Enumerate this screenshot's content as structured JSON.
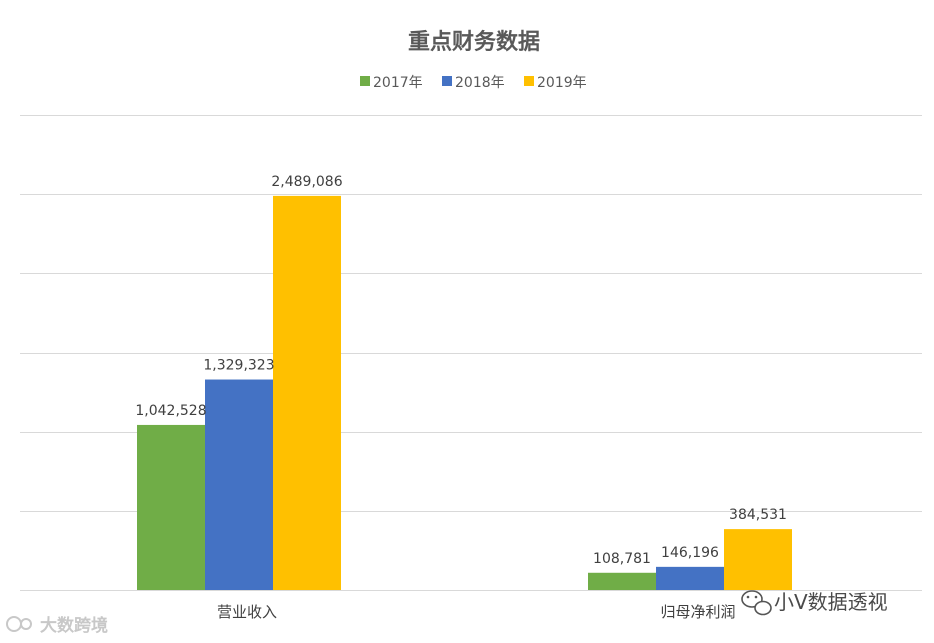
{
  "chart_data": {
    "type": "bar",
    "title": "重点财务数据",
    "categories": [
      "营业收入",
      "归母净利润"
    ],
    "series": [
      {
        "name": "2017年",
        "values": [
          1042528,
          108781
        ],
        "labels": [
          "1,042,528",
          "108,781"
        ]
      },
      {
        "name": "2018年",
        "values": [
          1329323,
          146196
        ],
        "labels": [
          "1,329,323",
          "146,196"
        ]
      },
      {
        "name": "2019年",
        "values": [
          2489086,
          384531
        ],
        "labels": [
          "2,489,086",
          "384,531"
        ]
      }
    ],
    "ylim": [
      0,
      3000000
    ],
    "grid": true,
    "legend_position": "top-center",
    "colors": [
      "#70ad47",
      "#4472c4",
      "#ffc000"
    ]
  },
  "watermarks": {
    "wechat_account": "小V数据透视",
    "bottom_left": "大数跨境"
  }
}
